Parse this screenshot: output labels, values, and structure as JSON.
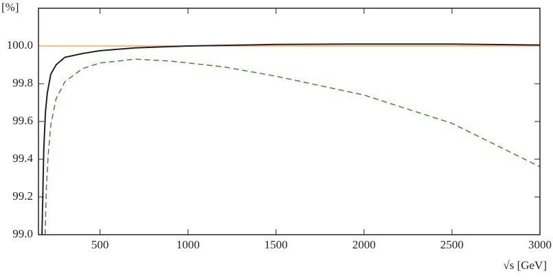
{
  "chart_data": {
    "type": "line",
    "y_label": "[%]",
    "x_label": "√s [GeV]",
    "xlim": [
      150,
      3000
    ],
    "xticks": [
      500,
      1000,
      1500,
      2000,
      2500,
      3000
    ],
    "ylim": [
      99.0,
      100.2
    ],
    "yticks": [
      {
        "value": 99.0,
        "label": "99.0"
      },
      {
        "value": 99.2,
        "label": "99.2"
      },
      {
        "value": 99.4,
        "label": "99.4"
      },
      {
        "value": 99.6,
        "label": "99.6"
      },
      {
        "value": 99.8,
        "label": "99.8"
      },
      {
        "value": 100.0,
        "label": "100.0"
      }
    ],
    "series": [
      {
        "color": "#f4a46a",
        "dashed": false,
        "x": [
          150,
          3000
        ],
        "values": [
          100.0,
          100.0
        ]
      },
      {
        "color": "#231f20",
        "dashed": false,
        "x": [
          170,
          180,
          190,
          200,
          220,
          250,
          300,
          400,
          500,
          700,
          1000,
          1500,
          2000,
          2500,
          3000
        ],
        "values": [
          99.0,
          99.45,
          99.65,
          99.75,
          99.85,
          99.9,
          99.94,
          99.96,
          99.975,
          99.99,
          100.0,
          100.008,
          100.01,
          100.01,
          100.005
        ]
      },
      {
        "color": "#3f8a2f",
        "dashed": true,
        "x": [
          188,
          195,
          205,
          220,
          250,
          300,
          400,
          500,
          700,
          900,
          1200,
          1500,
          2000,
          2500,
          3000
        ],
        "values": [
          99.0,
          99.25,
          99.42,
          99.58,
          99.72,
          99.81,
          99.88,
          99.91,
          99.93,
          99.92,
          99.89,
          99.84,
          99.74,
          99.59,
          99.36
        ]
      }
    ]
  }
}
